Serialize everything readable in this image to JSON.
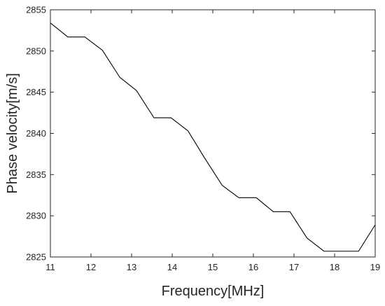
{
  "chart_data": {
    "type": "line",
    "title": "",
    "xlabel": "Frequency[MHz]",
    "ylabel": "Phase velocity[m/s]",
    "xlim": [
      11,
      19
    ],
    "ylim": [
      2825,
      2855
    ],
    "xticks": [
      11,
      12,
      13,
      14,
      15,
      16,
      17,
      18,
      19
    ],
    "yticks": [
      2825,
      2830,
      2835,
      2840,
      2845,
      2850,
      2855
    ],
    "grid": false,
    "legend": "none",
    "line_color": "#000000",
    "series": [
      {
        "x": [
          11.0,
          11.43,
          11.85,
          12.28,
          12.71,
          13.12,
          13.55,
          13.97,
          14.39,
          14.8,
          15.23,
          15.64,
          16.07,
          16.49,
          16.9,
          17.32,
          17.74,
          18.16,
          18.59,
          19.0
        ],
        "values": [
          2853.4,
          2851.7,
          2851.7,
          2850.1,
          2846.8,
          2845.2,
          2841.9,
          2841.9,
          2840.3,
          2837.0,
          2833.7,
          2832.2,
          2832.2,
          2830.5,
          2830.5,
          2827.3,
          2825.7,
          2825.7,
          2825.7,
          2828.9
        ]
      }
    ]
  }
}
